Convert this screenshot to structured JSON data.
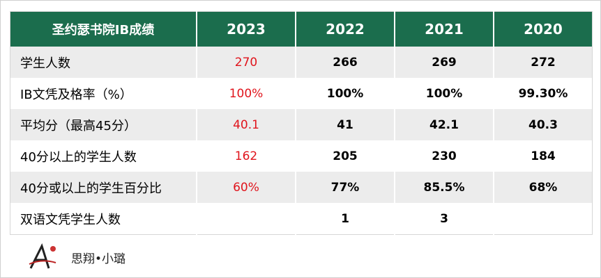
{
  "header": {
    "title": "圣约瑟书院IB成绩",
    "years": [
      "2023",
      "2022",
      "2021",
      "2020"
    ]
  },
  "table": {
    "rows": [
      {
        "label": "学生人数",
        "values": [
          "270",
          "266",
          "269",
          "272"
        ]
      },
      {
        "label": "IB文凭及格率（%）",
        "values": [
          "100%",
          "100%",
          "100%",
          "99.30%"
        ]
      },
      {
        "label": "平均分（最高45分）",
        "values": [
          "40.1",
          "41",
          "42.1",
          "40.3"
        ]
      },
      {
        "label": "40分以上的学生人数",
        "values": [
          "162",
          "205",
          "230",
          "184"
        ]
      },
      {
        "label": "40分或以上的学生百分比",
        "values": [
          "60%",
          "77%",
          "85.5%",
          "68%"
        ]
      },
      {
        "label": "双语文凭学生人数",
        "values": [
          null,
          "1",
          "3",
          null
        ]
      }
    ]
  },
  "footer": {
    "brand": "思翔•小璐"
  }
}
